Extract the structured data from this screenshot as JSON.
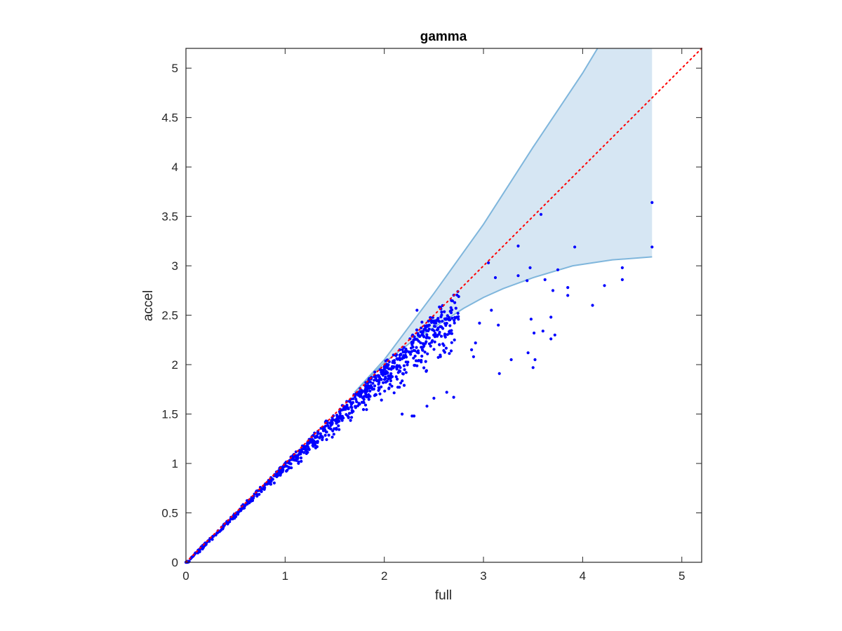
{
  "chart_data": {
    "type": "scatter",
    "title": "gamma",
    "xlabel": "full",
    "ylabel": "accel",
    "xlim": [
      0,
      5.2
    ],
    "ylim": [
      0,
      5.2
    ],
    "xticks": [
      0,
      1,
      2,
      3,
      4,
      5
    ],
    "yticks": [
      0,
      0.5,
      1,
      1.5,
      2,
      2.5,
      3,
      3.5,
      4,
      4.5,
      5
    ],
    "xtick_labels": [
      "0",
      "1",
      "2",
      "3",
      "4",
      "5"
    ],
    "ytick_labels": [
      "0",
      "0.5",
      "1",
      "1.5",
      "2",
      "2.5",
      "3",
      "3.5",
      "4",
      "4.5",
      "5"
    ],
    "grid": false,
    "colors": {
      "points": "#0000ff",
      "band_fill": "#d6e6f3",
      "band_edge": "#7fb6dc",
      "reference_line": "#ff0000",
      "axes": "#262626"
    },
    "reference_line": {
      "style": "dotted",
      "from": [
        0,
        0
      ],
      "to": [
        5.2,
        5.2
      ]
    },
    "band": {
      "upper": [
        [
          1.7,
          1.72
        ],
        [
          2.0,
          2.05
        ],
        [
          2.5,
          2.72
        ],
        [
          3.0,
          3.42
        ],
        [
          3.5,
          4.2
        ],
        [
          4.0,
          4.95
        ],
        [
          4.15,
          5.2
        ],
        [
          4.7,
          5.2
        ]
      ],
      "lower": [
        [
          1.7,
          1.72
        ],
        [
          2.0,
          2.02
        ],
        [
          2.3,
          2.25
        ],
        [
          2.6,
          2.44
        ],
        [
          2.8,
          2.57
        ],
        [
          3.0,
          2.68
        ],
        [
          3.2,
          2.77
        ],
        [
          3.5,
          2.88
        ],
        [
          3.9,
          3.0
        ],
        [
          4.3,
          3.06
        ],
        [
          4.7,
          3.09
        ]
      ]
    },
    "outliers": [
      [
        4.7,
        3.64
      ],
      [
        4.7,
        3.19
      ],
      [
        3.58,
        3.52
      ],
      [
        3.92,
        3.19
      ],
      [
        3.35,
        3.2
      ],
      [
        3.05,
        3.03
      ],
      [
        4.4,
        2.98
      ],
      [
        4.4,
        2.86
      ],
      [
        4.22,
        2.8
      ],
      [
        4.1,
        2.6
      ],
      [
        3.85,
        2.78
      ],
      [
        3.85,
        2.7
      ],
      [
        3.75,
        2.96
      ],
      [
        3.62,
        2.86
      ],
      [
        3.7,
        2.75
      ],
      [
        3.47,
        2.98
      ],
      [
        3.44,
        2.85
      ],
      [
        3.35,
        2.9
      ],
      [
        3.12,
        2.88
      ],
      [
        3.68,
        2.48
      ],
      [
        3.72,
        2.3
      ],
      [
        3.6,
        2.34
      ],
      [
        3.68,
        2.26
      ],
      [
        3.48,
        2.46
      ],
      [
        3.51,
        2.32
      ],
      [
        3.45,
        2.12
      ],
      [
        3.5,
        1.97
      ],
      [
        3.52,
        2.05
      ],
      [
        3.28,
        2.05
      ],
      [
        3.16,
        1.91
      ],
      [
        3.15,
        2.4
      ],
      [
        2.96,
        2.42
      ],
      [
        3.08,
        2.55
      ],
      [
        2.92,
        2.22
      ],
      [
        2.88,
        2.15
      ],
      [
        2.9,
        2.08
      ],
      [
        2.7,
        1.67
      ],
      [
        2.3,
        1.48
      ],
      [
        2.28,
        1.48
      ],
      [
        2.43,
        1.58
      ],
      [
        2.63,
        1.72
      ],
      [
        2.5,
        1.66
      ],
      [
        2.18,
        1.5
      ],
      [
        2.28,
        2.2
      ],
      [
        2.33,
        2.55
      ],
      [
        2.38,
        2.43
      ],
      [
        2.52,
        2.42
      ],
      [
        2.62,
        2.46
      ],
      [
        2.73,
        2.48
      ]
    ]
  }
}
